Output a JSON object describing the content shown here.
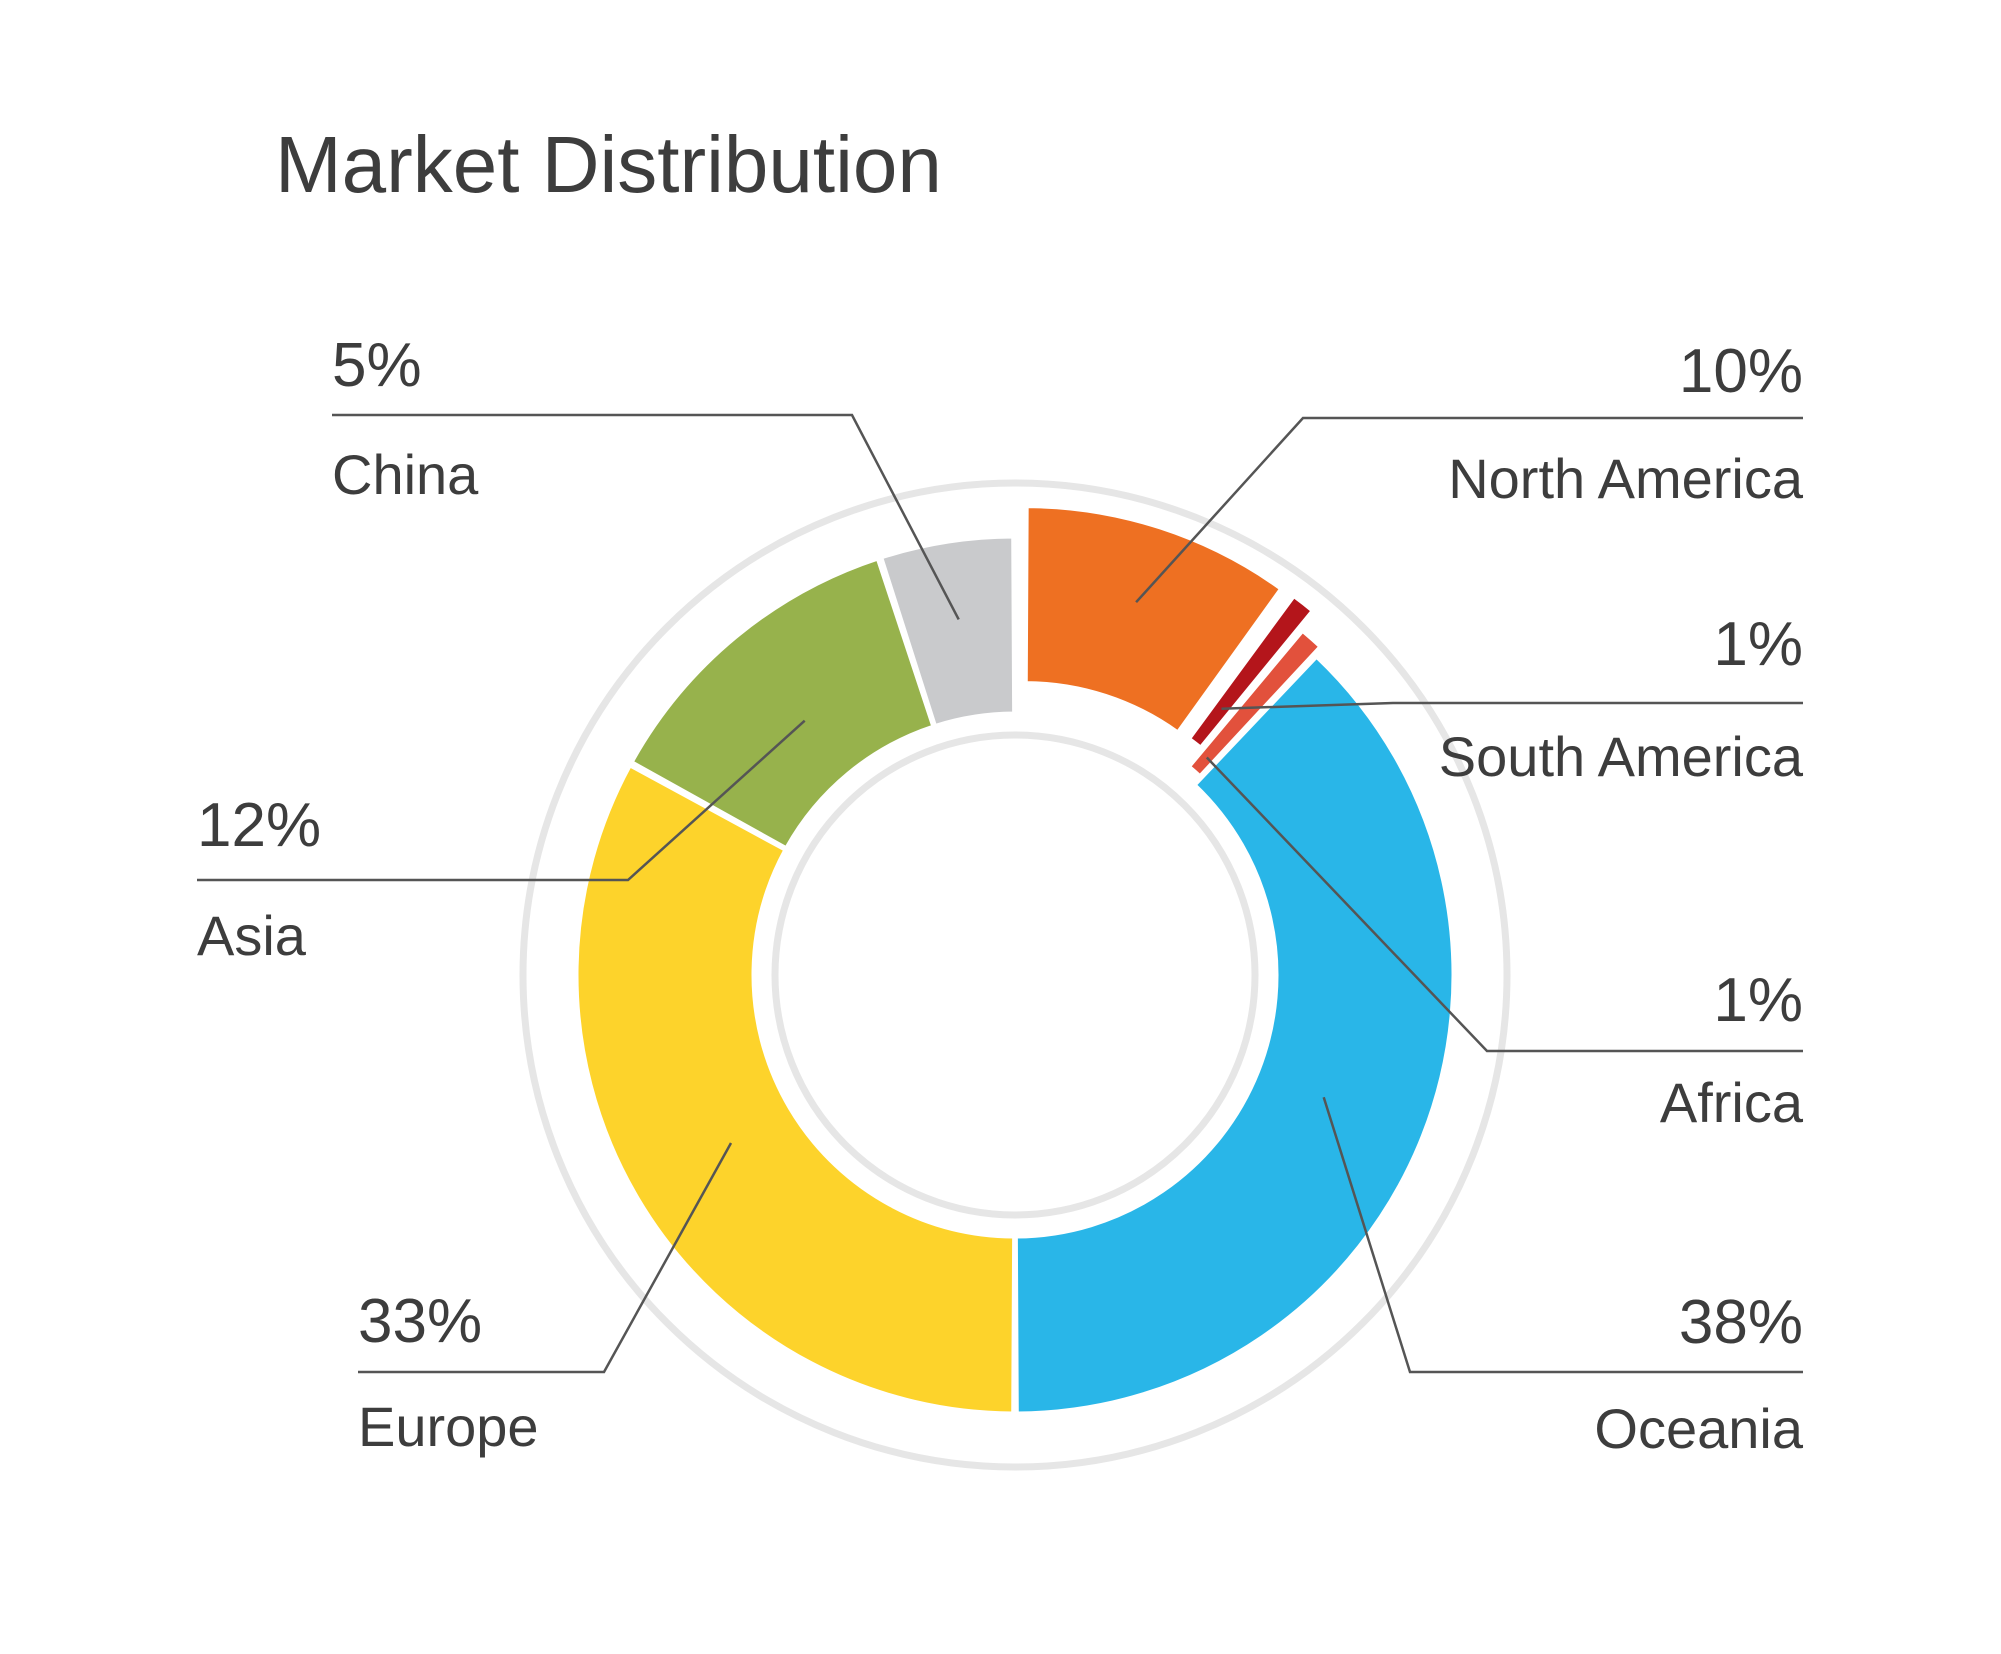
{
  "chart_data": {
    "type": "pie",
    "variant": "donut",
    "title": "Market Distribution",
    "slices": [
      {
        "label": "North America",
        "value_label": "10%",
        "value": 10,
        "color": "#EE7022"
      },
      {
        "label": "South America",
        "value_label": "1%",
        "value": 1,
        "color": "#B4151B"
      },
      {
        "label": "Africa",
        "value_label": "1%",
        "value": 1,
        "color": "#E2513C"
      },
      {
        "label": "Oceania",
        "value_label": "38%",
        "value": 38,
        "color": "#29B6E8"
      },
      {
        "label": "Europe",
        "value_label": "33%",
        "value": 33,
        "color": "#FDD32B"
      },
      {
        "label": "Asia",
        "value_label": "12%",
        "value": 12,
        "color": "#97B24C"
      },
      {
        "label": "China",
        "value_label": "5%",
        "value": 5,
        "color": "#C9CACC"
      }
    ],
    "text_color": "#3d3d3d",
    "leader_color": "#555555",
    "ring_color": "#e6e6e6"
  }
}
